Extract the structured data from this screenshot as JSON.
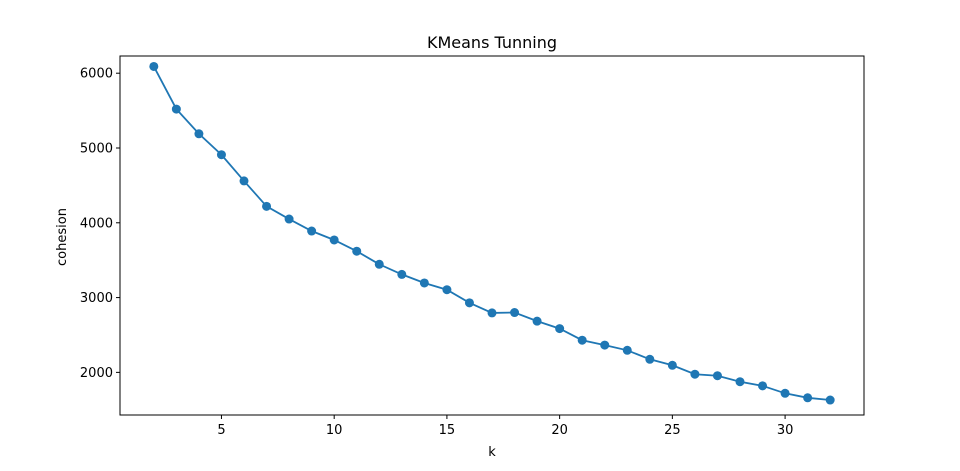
{
  "chart_data": {
    "type": "line",
    "title": "KMeans Tunning",
    "xlabel": "k",
    "ylabel": "cohesion",
    "xlim": [
      0.5,
      33.5
    ],
    "ylim": [
      1430,
      6230
    ],
    "xticks": [
      5,
      10,
      15,
      20,
      25,
      30
    ],
    "yticks": [
      2000,
      3000,
      4000,
      5000,
      6000
    ],
    "grid": false,
    "legend": "none",
    "series": [
      {
        "color": "#1f77b4",
        "marker": "circle",
        "x": [
          2,
          3,
          4,
          5,
          6,
          7,
          8,
          9,
          10,
          11,
          12,
          13,
          14,
          15,
          16,
          17,
          18,
          19,
          20,
          21,
          22,
          23,
          24,
          25,
          26,
          27,
          28,
          29,
          30,
          31,
          32
        ],
        "y": [
          6090,
          5520,
          5190,
          4910,
          4560,
          4220,
          4050,
          3890,
          3770,
          3620,
          3445,
          3310,
          3195,
          3105,
          2930,
          2795,
          2800,
          2685,
          2585,
          2430,
          2365,
          2295,
          2175,
          2095,
          1975,
          1955,
          1875,
          1820,
          1720,
          1660,
          1630
        ]
      }
    ]
  }
}
